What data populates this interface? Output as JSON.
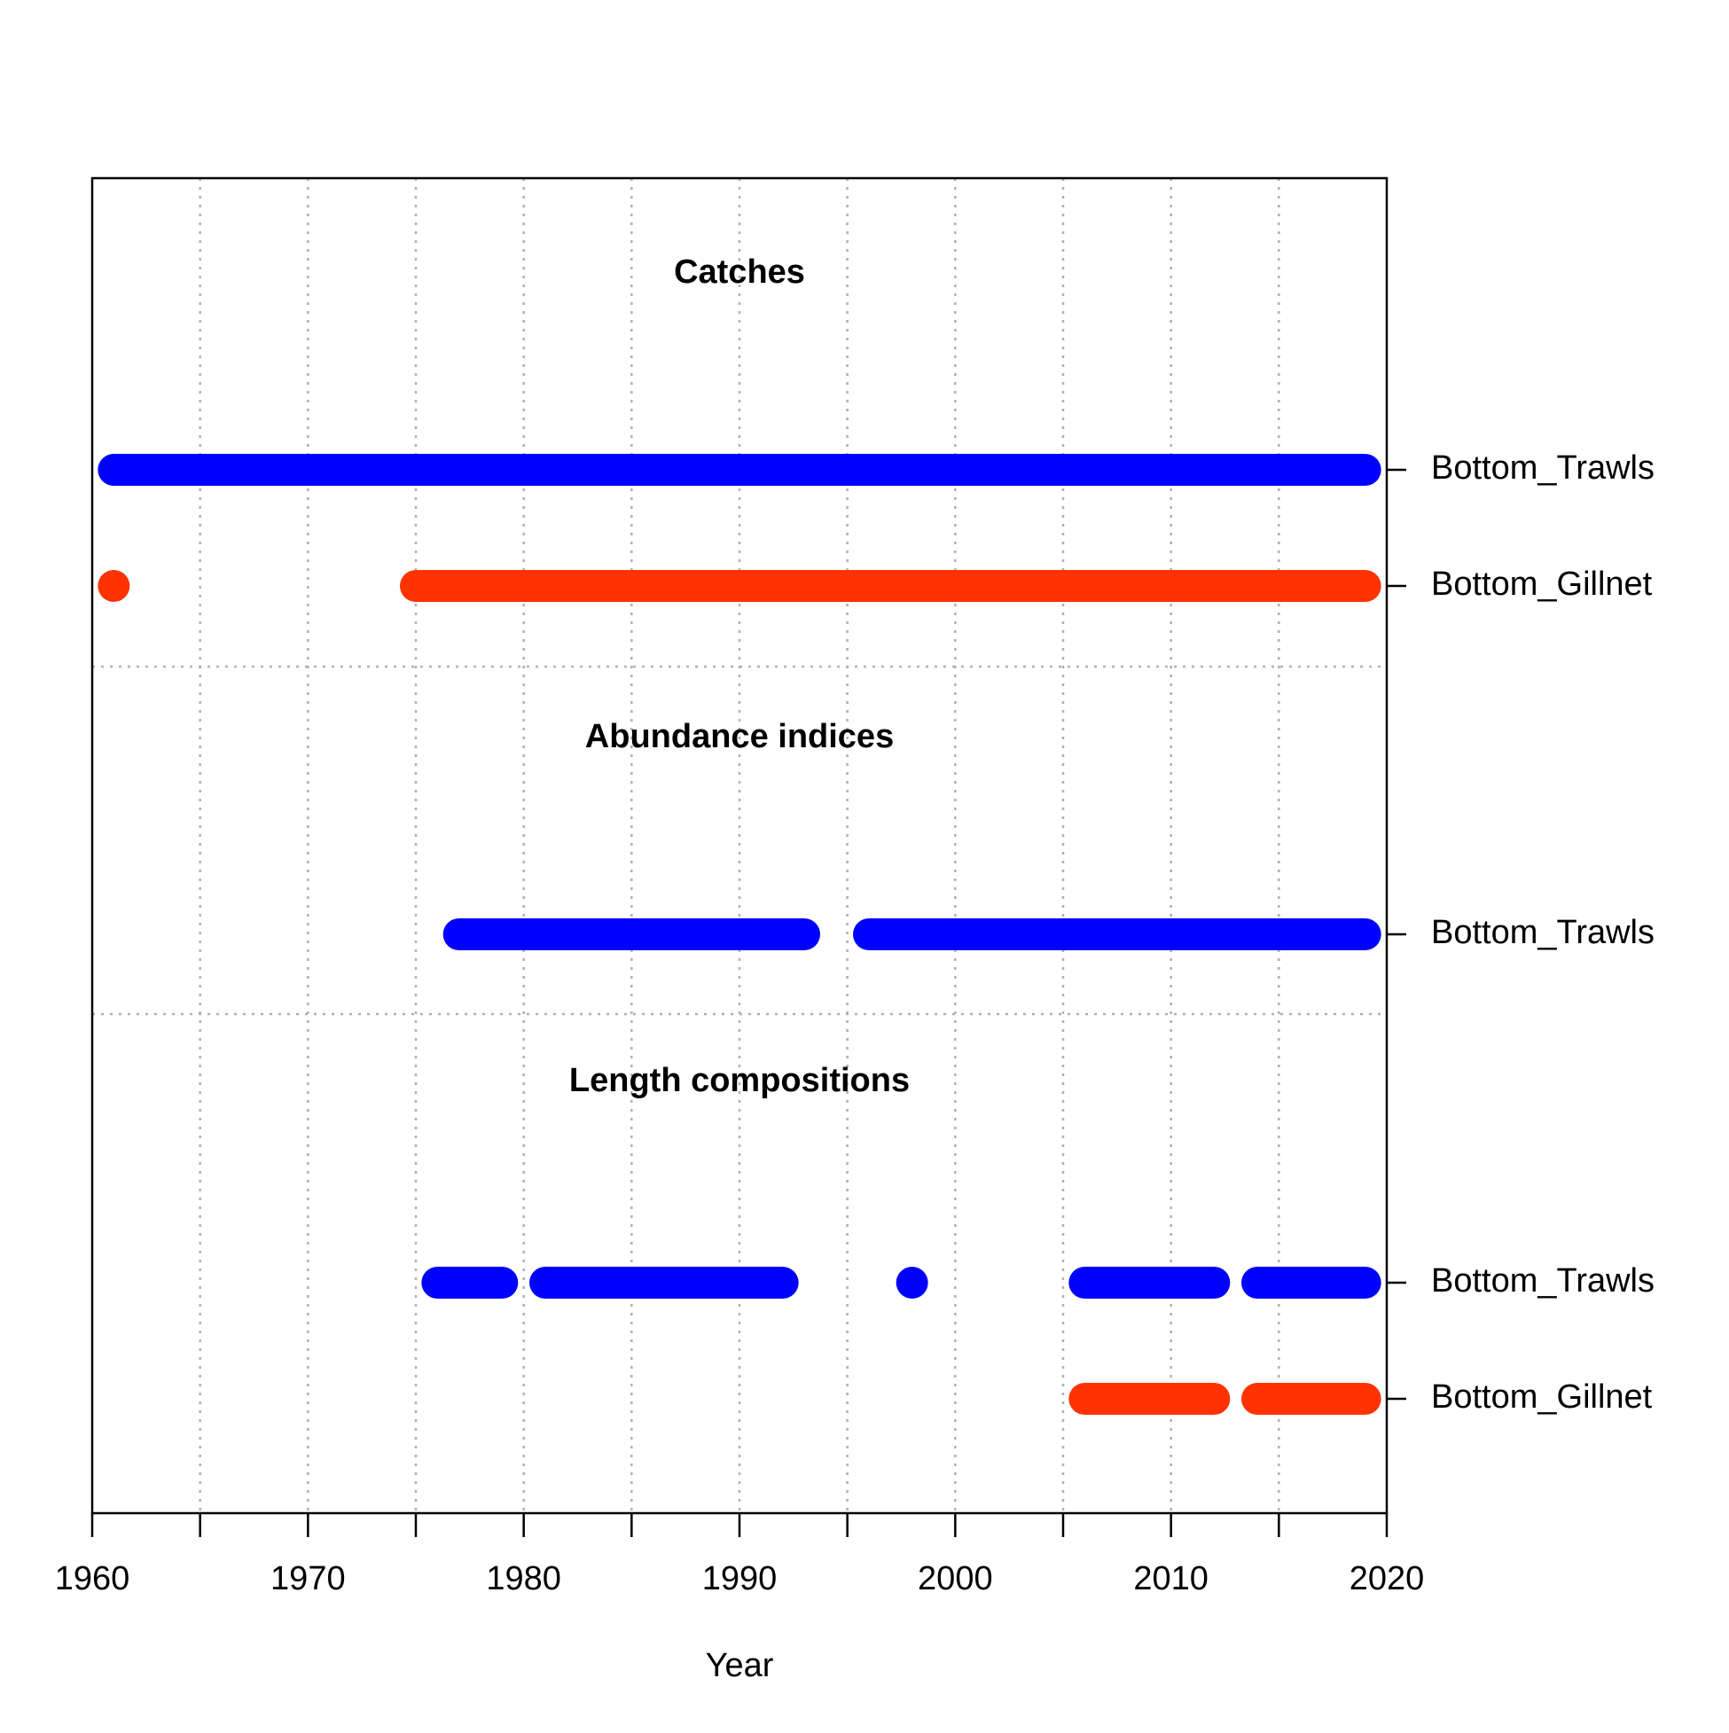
{
  "chart_data": {
    "type": "timeline",
    "xlabel": "Year",
    "xlim": [
      1960,
      2020
    ],
    "xticks": [
      "1960",
      "1970",
      "1980",
      "1990",
      "2000",
      "2010",
      "2020"
    ],
    "grid": true,
    "colors": {
      "Bottom_Trawls": "#0000FF",
      "Bottom_Gillnet": "#FF3300"
    },
    "sections": [
      {
        "title": "Catches",
        "rows": [
          {
            "name": "Bottom_Trawls",
            "segments": [
              [
                1961,
                2019
              ]
            ]
          },
          {
            "name": "Bottom_Gillnet",
            "segments": [
              [
                1961,
                1961
              ],
              [
                1975,
                2019
              ]
            ]
          }
        ]
      },
      {
        "title": "Abundance indices",
        "rows": [
          {
            "name": "Bottom_Trawls",
            "segments": [
              [
                1977,
                1993
              ],
              [
                1996,
                2019
              ]
            ]
          }
        ]
      },
      {
        "title": "Length compositions",
        "rows": [
          {
            "name": "Bottom_Trawls",
            "segments": [
              [
                1976,
                1979
              ],
              [
                1981,
                1992
              ],
              [
                1998,
                1998
              ],
              [
                2006,
                2012
              ],
              [
                2014,
                2019
              ]
            ]
          },
          {
            "name": "Bottom_Gillnet",
            "segments": [
              [
                2006,
                2012
              ],
              [
                2014,
                2019
              ]
            ]
          }
        ]
      }
    ]
  }
}
